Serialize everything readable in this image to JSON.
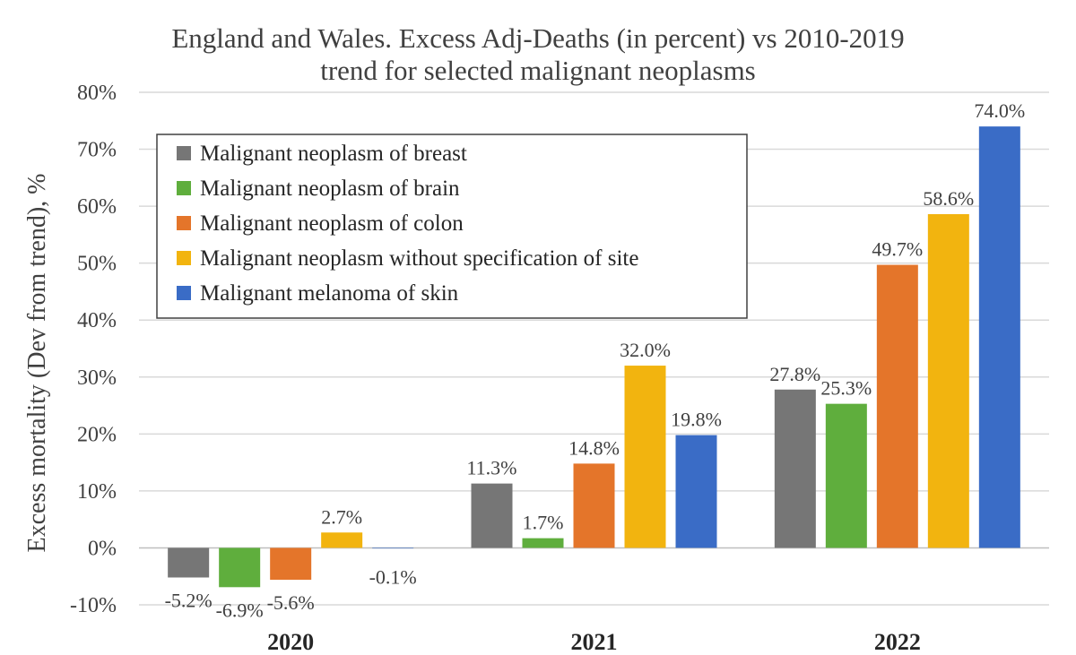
{
  "chart_data": {
    "type": "bar",
    "title": [
      "England and Wales. Excess Adj-Deaths (in percent) vs 2010-2019",
      "trend for selected malignant neoplasms"
    ],
    "ylabel": "Excess mortality (Dev from trend), %",
    "xlabel": "",
    "categories": [
      "2020",
      "2021",
      "2022"
    ],
    "ylim": [
      -10,
      80
    ],
    "yticks": [
      -10,
      0,
      10,
      20,
      30,
      40,
      50,
      60,
      70,
      80
    ],
    "ytick_labels": [
      "-10%",
      "0%",
      "10%",
      "20%",
      "30%",
      "40%",
      "50%",
      "60%",
      "70%",
      "80%"
    ],
    "grid": true,
    "legend_position": "top-left",
    "series": [
      {
        "name": "Malignant neoplasm of breast",
        "color": "#767676",
        "values": [
          -5.2,
          11.3,
          27.8
        ],
        "labels": [
          "-5.2%",
          "11.3%",
          "27.8%"
        ]
      },
      {
        "name": "Malignant neoplasm of brain",
        "color": "#5fae3d",
        "values": [
          -6.9,
          1.7,
          25.3
        ],
        "labels": [
          "-6.9%",
          "1.7%",
          "25.3%"
        ]
      },
      {
        "name": "Malignant neoplasm of colon",
        "color": "#e4752a",
        "values": [
          -5.6,
          14.8,
          49.7
        ],
        "labels": [
          "-5.6%",
          "14.8%",
          "49.7%"
        ]
      },
      {
        "name": "Malignant neoplasm without specification of site",
        "color": "#f2b40f",
        "values": [
          2.7,
          32.0,
          58.6
        ],
        "labels": [
          "2.7%",
          "32.0%",
          "58.6%"
        ]
      },
      {
        "name": "Malignant melanoma of skin",
        "color": "#3a6cc6",
        "values": [
          -0.1,
          19.8,
          74.0
        ],
        "labels": [
          "-0.1%",
          "19.8%",
          "74.0%"
        ]
      }
    ]
  }
}
